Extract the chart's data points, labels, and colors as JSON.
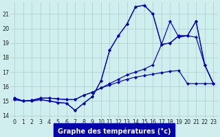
{
  "bg_color": "#d0eeee",
  "grid_color": "#aacccc",
  "line_color": "#0000bb",
  "x_hours": [
    0,
    1,
    2,
    3,
    4,
    5,
    6,
    7,
    8,
    9,
    10,
    11,
    12,
    13,
    14,
    15,
    16,
    17,
    18,
    19,
    20,
    21,
    22,
    23
  ],
  "series": [
    [
      15.2,
      15.0,
      15.0,
      15.1,
      15.0,
      14.9,
      14.85,
      14.35,
      14.85,
      15.3,
      16.4,
      18.5,
      19.5,
      20.3,
      21.5,
      21.6,
      21.0,
      18.9,
      19.0,
      19.5,
      19.5,
      19.4,
      17.5,
      16.2
    ],
    [
      15.2,
      15.0,
      15.0,
      15.1,
      15.0,
      14.9,
      14.85,
      14.35,
      14.85,
      15.3,
      16.4,
      18.5,
      19.5,
      20.3,
      21.5,
      21.6,
      21.0,
      18.9,
      20.5,
      19.4,
      19.5,
      20.5,
      17.5,
      16.2
    ],
    [
      15.1,
      15.0,
      15.05,
      15.2,
      15.2,
      15.15,
      15.1,
      15.1,
      15.4,
      15.6,
      15.9,
      16.2,
      16.5,
      16.8,
      17.0,
      17.2,
      17.5,
      18.9,
      19.0,
      19.5,
      19.5,
      20.5,
      17.5,
      16.2
    ],
    [
      15.1,
      15.0,
      15.05,
      15.2,
      15.2,
      15.15,
      15.1,
      15.1,
      15.4,
      15.6,
      15.9,
      16.1,
      16.3,
      16.5,
      16.65,
      16.75,
      16.85,
      16.95,
      17.05,
      17.1,
      16.2,
      16.2,
      16.2,
      16.2
    ]
  ],
  "ylim": [
    13.8,
    21.8
  ],
  "yticks": [
    14,
    15,
    16,
    17,
    18,
    19,
    20,
    21
  ],
  "title": "Graphe des températures (°c)",
  "tick_fontsize": 5.8,
  "title_fontsize": 7.0,
  "label_bg": "#0000aa"
}
